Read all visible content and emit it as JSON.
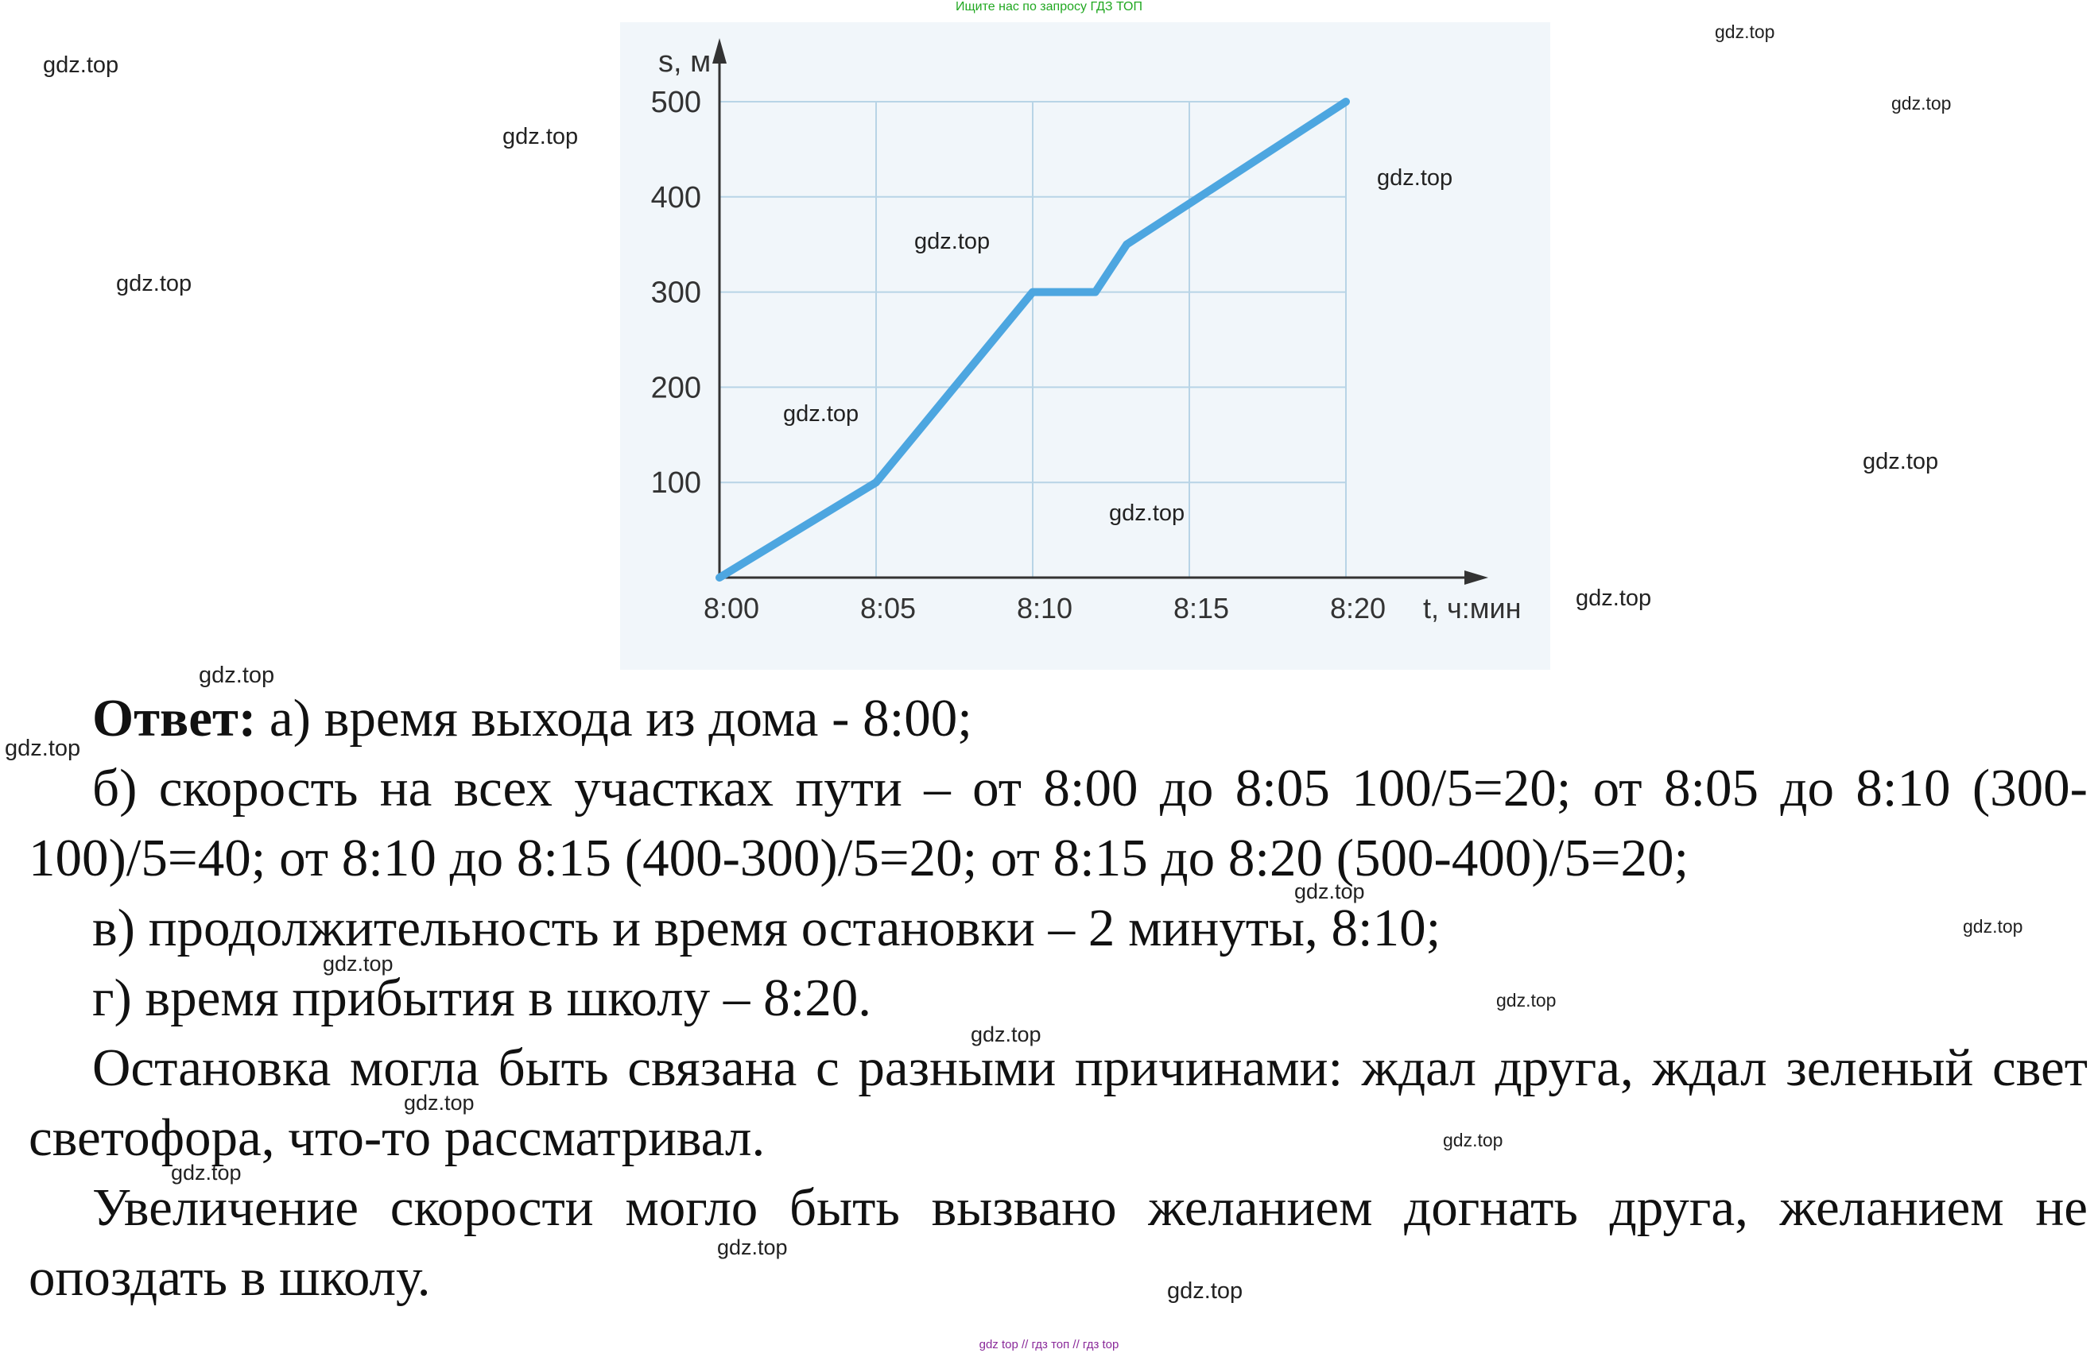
{
  "banner_top": "Ищите нас по запросу ГДЗ ТОП",
  "banner_bottom": "gdz top  //  гдз топ  //  гдз top",
  "watermark": "gdz.top",
  "chart_data": {
    "type": "line",
    "ylabel": "s, м",
    "xlabel": "t, ч:мин",
    "x_ticks": [
      "8:00",
      "8:05",
      "8:10",
      "8:15",
      "8:20"
    ],
    "y_ticks": [
      "100",
      "200",
      "300",
      "400",
      "500"
    ],
    "ylim": [
      0,
      500
    ],
    "xlim_minutes_after_8": [
      0,
      20
    ],
    "grid": true,
    "series": [
      {
        "color": "#4da6e0",
        "points": [
          {
            "t": "8:00",
            "s": 0
          },
          {
            "t": "8:05",
            "s": 100
          },
          {
            "t": "8:10",
            "s": 300
          },
          {
            "t": "8:12",
            "s": 300
          },
          {
            "t": "8:13",
            "s": 350
          },
          {
            "t": "8:20",
            "s": 500
          }
        ]
      }
    ]
  },
  "answer": {
    "label": "Ответ:",
    "a": " а) время выхода из дома - 8:00;",
    "b": "б) скорость на всех участках пути – от 8:00 до 8:05 100/5=20; от 8:05 до 8:10 (300-100)/5=40; от 8:10 до 8:15 (400-300)/5=20; от 8:15 до 8:20 (500-400)/5=20;",
    "v": "в) продолжительность и время остановки – 2 минуты, 8:10;",
    "g": "г) время прибытия в школу – 8:20.",
    "p1": "Остановка могла быть связана с разными причинами: ждал друга, ждал зеленый свет светофора, что-то рассматривал.",
    "p2": "Увеличение скорости могло быть вызвано желанием догнать друга, желанием не опоздать в школу."
  }
}
